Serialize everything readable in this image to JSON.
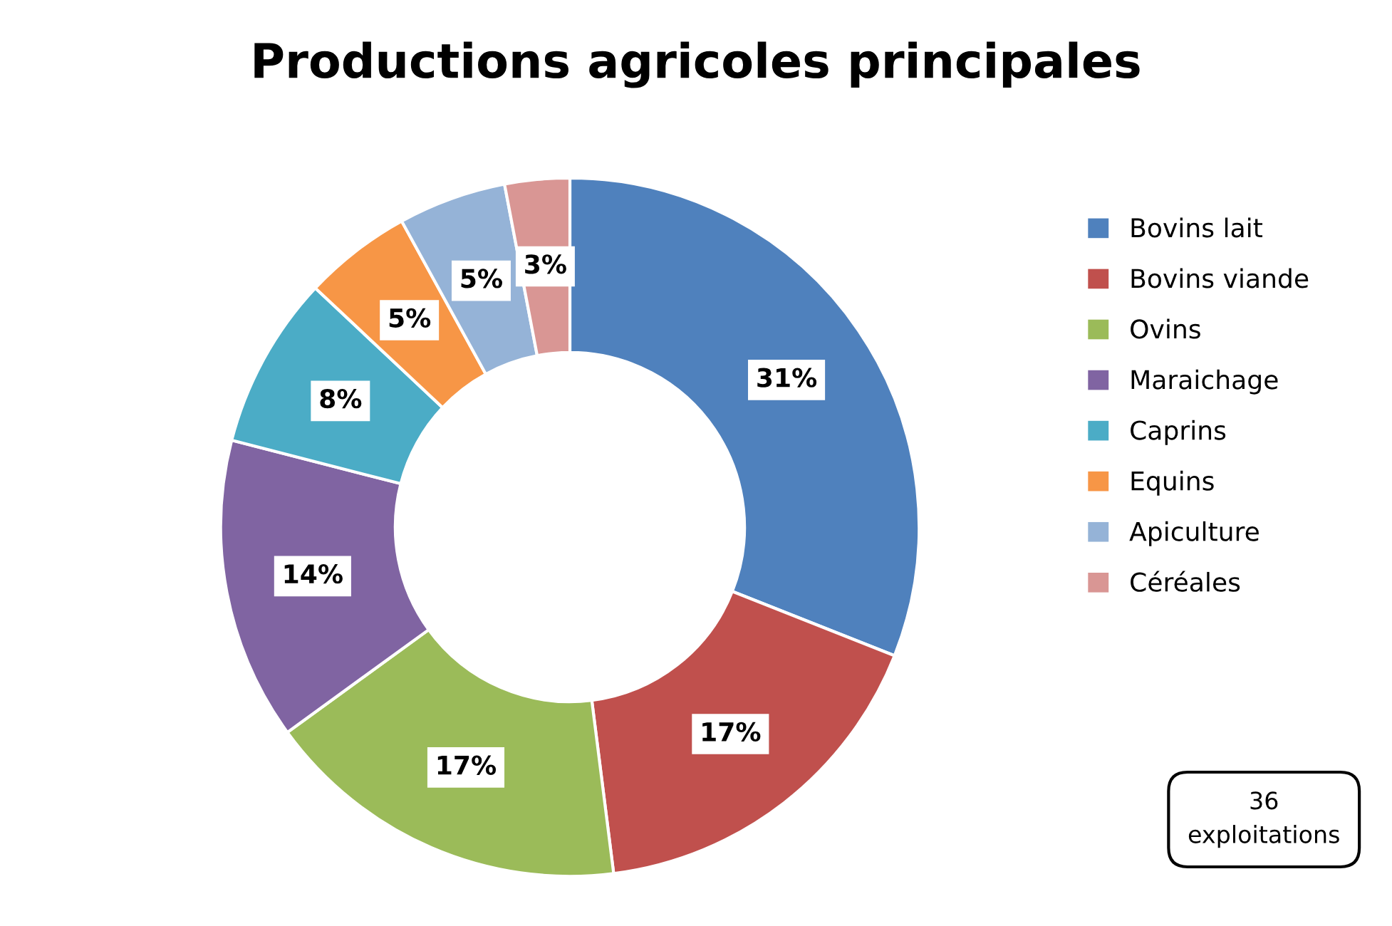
{
  "chart_data": {
    "type": "donut",
    "title": "Productions agricoles principales",
    "categories": [
      "Bovins lait",
      "Bovins viande",
      "Ovins",
      "Maraichage",
      "Caprins",
      "Equins",
      "Apiculture",
      "Céréales"
    ],
    "values": [
      31,
      17,
      17,
      14,
      8,
      5,
      5,
      3
    ],
    "value_labels": [
      "31%",
      "17%",
      "17%",
      "14%",
      "8%",
      "5%",
      "5%",
      "3%"
    ],
    "colors": [
      "#4f81bd",
      "#c0504d",
      "#9bbb59",
      "#8064a2",
      "#4bacc6",
      "#f79646",
      "#95b3d7",
      "#d99694"
    ],
    "legend": "right",
    "annotations": [
      "36\nexploitations"
    ]
  }
}
